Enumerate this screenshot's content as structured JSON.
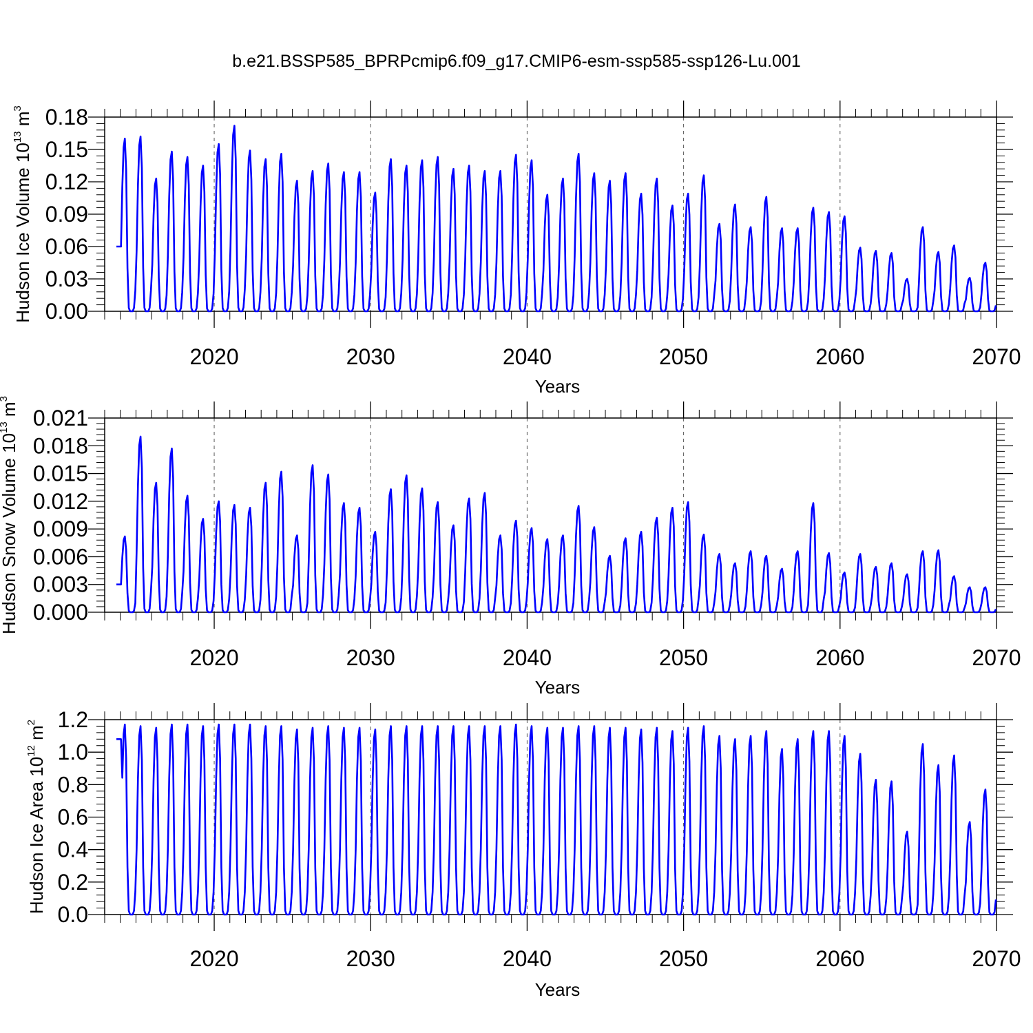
{
  "title": "b.e21.BSSP585_BPRPcmip6.f09_g17.CMIP6-esm-ssp585-ssp126-Lu.001",
  "colors": {
    "series": "#0000ff",
    "axis": "#000000",
    "grid": "#555555"
  },
  "chart_data": [
    {
      "type": "line",
      "title": "",
      "xlabel": "Years",
      "ylabel": {
        "name": "Hudson Ice Volume",
        "base": "10",
        "exp": "13",
        "unit": "m",
        "unit_exp": "3"
      },
      "xlim": [
        2013,
        2070
      ],
      "ylim": [
        0,
        0.18
      ],
      "xticks": [
        "2020",
        "2030",
        "2040",
        "2050",
        "2060",
        "2070"
      ],
      "yticks": [
        "0.00",
        "0.03",
        "0.06",
        "0.09",
        "0.12",
        "0.15",
        "0.18"
      ],
      "grid": "dashed vertical at decades",
      "series": [
        {
          "name": "Hudson Ice Volume",
          "start_year": 2013,
          "annual_peak_year": [
            2014,
            2015,
            2016,
            2017,
            2018,
            2019,
            2020,
            2021,
            2022,
            2023,
            2024,
            2025,
            2026,
            2027,
            2028,
            2029,
            2030,
            2031,
            2032,
            2033,
            2034,
            2035,
            2036,
            2037,
            2038,
            2039,
            2040,
            2041,
            2042,
            2043,
            2044,
            2045,
            2046,
            2047,
            2048,
            2049,
            2050,
            2051,
            2052,
            2053,
            2054,
            2055,
            2056,
            2057,
            2058,
            2059,
            2060,
            2061,
            2062,
            2063,
            2064,
            2065,
            2066,
            2067,
            2068,
            2069
          ],
          "annual_peak": [
            0.16,
            0.162,
            0.123,
            0.148,
            0.143,
            0.135,
            0.155,
            0.172,
            0.149,
            0.141,
            0.146,
            0.121,
            0.13,
            0.137,
            0.129,
            0.129,
            0.11,
            0.141,
            0.135,
            0.14,
            0.143,
            0.132,
            0.135,
            0.13,
            0.13,
            0.145,
            0.14,
            0.108,
            0.123,
            0.146,
            0.128,
            0.121,
            0.128,
            0.109,
            0.123,
            0.098,
            0.109,
            0.126,
            0.081,
            0.099,
            0.078,
            0.106,
            0.077,
            0.077,
            0.096,
            0.092,
            0.088,
            0.059,
            0.056,
            0.054,
            0.03,
            0.078,
            0.055,
            0.061,
            0.031,
            0.045
          ],
          "first_point": 0.06
        }
      ]
    },
    {
      "type": "line",
      "title": "",
      "xlabel": "Years",
      "ylabel": {
        "name": "Hudson Snow Volume",
        "base": "10",
        "exp": "13",
        "unit": "m",
        "unit_exp": "3"
      },
      "xlim": [
        2013,
        2070
      ],
      "ylim": [
        0,
        0.021
      ],
      "xticks": [
        "2020",
        "2030",
        "2040",
        "2050",
        "2060",
        "2070"
      ],
      "yticks": [
        "0.000",
        "0.003",
        "0.006",
        "0.009",
        "0.012",
        "0.015",
        "0.018",
        "0.021"
      ],
      "grid": "dashed vertical at decades",
      "series": [
        {
          "name": "Hudson Snow Volume",
          "start_year": 2013,
          "annual_peak": [
            0.0082,
            0.019,
            0.014,
            0.0177,
            0.0126,
            0.0101,
            0.012,
            0.0116,
            0.0113,
            0.014,
            0.0152,
            0.0083,
            0.0159,
            0.0149,
            0.0118,
            0.0113,
            0.0087,
            0.0133,
            0.0148,
            0.0134,
            0.0119,
            0.0094,
            0.0123,
            0.0129,
            0.0083,
            0.0099,
            0.0091,
            0.0079,
            0.0083,
            0.0115,
            0.0092,
            0.0061,
            0.008,
            0.0087,
            0.0102,
            0.0113,
            0.0119,
            0.0084,
            0.0063,
            0.0053,
            0.0066,
            0.0061,
            0.0047,
            0.0066,
            0.0118,
            0.0064,
            0.0043,
            0.0063,
            0.0049,
            0.0053,
            0.0041,
            0.0066,
            0.0067,
            0.0039,
            0.0027,
            0.0027
          ],
          "first_point": 0.003
        }
      ]
    },
    {
      "type": "line",
      "title": "",
      "xlabel": "Years",
      "ylabel": {
        "name": "Hudson Ice Area",
        "base": "10",
        "exp": "12",
        "unit": "m",
        "unit_exp": "2"
      },
      "xlim": [
        2013,
        2070
      ],
      "ylim": [
        0,
        1.2
      ],
      "xticks": [
        "2020",
        "2030",
        "2040",
        "2050",
        "2060",
        "2070"
      ],
      "yticks": [
        "0.0",
        "0.2",
        "0.4",
        "0.6",
        "0.8",
        "1.0",
        "1.2"
      ],
      "grid": "dashed vertical at decades",
      "series": [
        {
          "name": "Hudson Ice Area",
          "start_year": 2013,
          "annual_peak": [
            1.17,
            1.16,
            1.15,
            1.17,
            1.17,
            1.16,
            1.17,
            1.17,
            1.17,
            1.16,
            1.16,
            1.14,
            1.15,
            1.16,
            1.15,
            1.15,
            1.14,
            1.16,
            1.16,
            1.16,
            1.16,
            1.16,
            1.16,
            1.16,
            1.16,
            1.17,
            1.16,
            1.15,
            1.15,
            1.16,
            1.16,
            1.15,
            1.15,
            1.14,
            1.15,
            1.13,
            1.15,
            1.16,
            1.1,
            1.08,
            1.1,
            1.13,
            1.02,
            1.08,
            1.13,
            1.13,
            1.1,
            0.99,
            0.83,
            0.82,
            0.51,
            1.05,
            0.92,
            0.98,
            0.57,
            0.77
          ],
          "first_point": 1.08
        }
      ]
    }
  ]
}
